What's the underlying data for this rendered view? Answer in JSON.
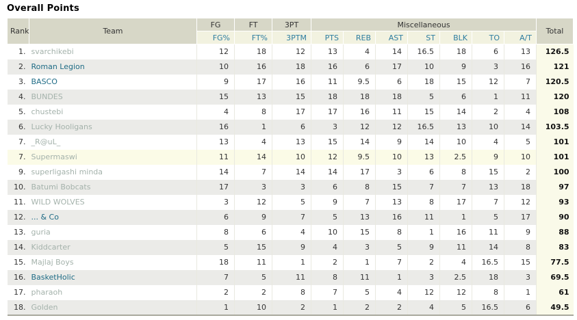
{
  "title": "Overall Points",
  "colors": {
    "header_bg": "#d7d7c7",
    "subheader_bg": "#f2f2e0",
    "subheader_text": "#2e7da0",
    "total_header_bg": "#66665f",
    "total_col_bg": "#fafae9",
    "row_even_bg": "#ebebe8",
    "row_highlight_bg": "#fbfbe7",
    "team_link": "#1e6b85",
    "team_link_muted": "#a4b2ab"
  },
  "table": {
    "rank_header": "Rank",
    "team_header": "Team",
    "group_headers": [
      "FG",
      "FT",
      "3PT",
      "Miscellaneous"
    ],
    "stat_headers": [
      "FG%",
      "FT%",
      "3PTM",
      "PTS",
      "REB",
      "AST",
      "ST",
      "BLK",
      "TO",
      "A/T"
    ],
    "total_header": "Total",
    "rows": [
      {
        "rank": "1.",
        "team": "svarchikebi",
        "style": "muted",
        "stats": [
          12,
          18,
          12,
          13,
          4,
          14,
          16.5,
          18,
          6,
          13
        ],
        "total": "126.5",
        "highlight": false
      },
      {
        "rank": "2.",
        "team": "Roman Legion",
        "style": "link",
        "stats": [
          10,
          16,
          18,
          16,
          6,
          17,
          10,
          9,
          3,
          16
        ],
        "total": "121",
        "highlight": false
      },
      {
        "rank": "3.",
        "team": "BASCO",
        "style": "link",
        "stats": [
          9,
          17,
          16,
          11,
          9.5,
          6,
          18,
          15,
          12,
          7
        ],
        "total": "120.5",
        "highlight": false
      },
      {
        "rank": "4.",
        "team": "BUNDES",
        "style": "muted",
        "stats": [
          15,
          13,
          15,
          18,
          18,
          18,
          5,
          6,
          1,
          11
        ],
        "total": "120",
        "highlight": false
      },
      {
        "rank": "5.",
        "team": "chustebi",
        "style": "muted",
        "stats": [
          4,
          8,
          17,
          17,
          16,
          11,
          15,
          14,
          2,
          4
        ],
        "total": "108",
        "highlight": false
      },
      {
        "rank": "6.",
        "team": "Lucky Hooligans",
        "style": "muted",
        "stats": [
          16,
          1,
          6,
          3,
          12,
          12,
          16.5,
          13,
          10,
          14
        ],
        "total": "103.5",
        "highlight": false
      },
      {
        "rank": "7.",
        "team": "_R@uL_",
        "style": "muted",
        "stats": [
          13,
          4,
          13,
          15,
          14,
          9,
          14,
          10,
          4,
          5
        ],
        "total": "101",
        "highlight": false
      },
      {
        "rank": "7.",
        "team": "Supermaswi",
        "style": "muted",
        "stats": [
          11,
          14,
          10,
          12,
          9.5,
          10,
          13,
          2.5,
          9,
          10
        ],
        "total": "101",
        "highlight": true
      },
      {
        "rank": "9.",
        "team": "superligashi minda",
        "style": "muted",
        "stats": [
          14,
          7,
          14,
          14,
          17,
          3,
          6,
          8,
          15,
          2
        ],
        "total": "100",
        "highlight": false
      },
      {
        "rank": "10.",
        "team": "Batumi Bobcats",
        "style": "muted",
        "stats": [
          17,
          3,
          3,
          6,
          8,
          15,
          7,
          7,
          13,
          18
        ],
        "total": "97",
        "highlight": false
      },
      {
        "rank": "11.",
        "team": "WILD WOLVES",
        "style": "muted",
        "stats": [
          3,
          12,
          5,
          9,
          7,
          13,
          8,
          17,
          7,
          12
        ],
        "total": "93",
        "highlight": false
      },
      {
        "rank": "12.",
        "team": "... & Co",
        "style": "link",
        "stats": [
          6,
          9,
          7,
          5,
          13,
          16,
          11,
          1,
          5,
          17
        ],
        "total": "90",
        "highlight": false
      },
      {
        "rank": "13.",
        "team": "guria",
        "style": "muted",
        "stats": [
          8,
          6,
          4,
          10,
          15,
          8,
          1,
          16,
          11,
          9
        ],
        "total": "88",
        "highlight": false
      },
      {
        "rank": "14.",
        "team": "Kiddcarter",
        "style": "muted",
        "stats": [
          5,
          15,
          9,
          4,
          3,
          5,
          9,
          11,
          14,
          8
        ],
        "total": "83",
        "highlight": false
      },
      {
        "rank": "15.",
        "team": "Majlaj Boys",
        "style": "muted",
        "stats": [
          18,
          11,
          1,
          2,
          1,
          7,
          2,
          4,
          16.5,
          15
        ],
        "total": "77.5",
        "highlight": false
      },
      {
        "rank": "16.",
        "team": "BasketHolic",
        "style": "link",
        "stats": [
          7,
          5,
          11,
          8,
          11,
          1,
          3,
          2.5,
          18,
          3
        ],
        "total": "69.5",
        "highlight": false
      },
      {
        "rank": "17.",
        "team": "pharaoh",
        "style": "muted",
        "stats": [
          2,
          2,
          8,
          7,
          5,
          4,
          12,
          12,
          8,
          1
        ],
        "total": "61",
        "highlight": false
      },
      {
        "rank": "18.",
        "team": "Golden",
        "style": "muted",
        "stats": [
          1,
          10,
          2,
          1,
          2,
          2,
          4,
          5,
          16.5,
          6
        ],
        "total": "49.5",
        "highlight": false
      }
    ]
  }
}
